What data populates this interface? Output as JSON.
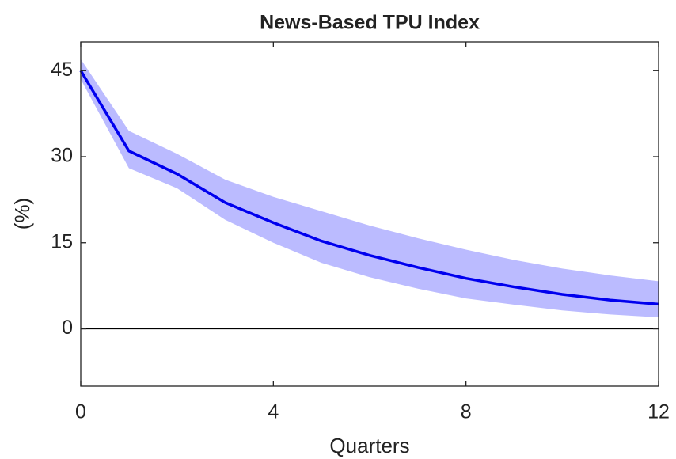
{
  "chart_data": {
    "type": "line",
    "title": "News-Based TPU Index",
    "xlabel": "Quarters",
    "ylabel": "(%)",
    "x": [
      0,
      1,
      2,
      3,
      4,
      5,
      6,
      7,
      8,
      9,
      10,
      11,
      12
    ],
    "values": [
      45,
      31,
      27,
      22,
      18.5,
      15.3,
      12.8,
      10.7,
      8.8,
      7.3,
      6.0,
      5.0,
      4.3
    ],
    "band_upper": [
      47,
      34.5,
      30.5,
      26,
      23,
      20.5,
      18,
      15.8,
      13.8,
      12,
      10.5,
      9.3,
      8.3
    ],
    "band_lower": [
      43.5,
      28,
      24.5,
      19,
      15,
      11.5,
      9,
      7,
      5.3,
      4.2,
      3.2,
      2.5,
      2
    ],
    "color": "#0000ee",
    "band_color": "#bbbbff",
    "hline": 0,
    "xlim": [
      0,
      12
    ],
    "xticks": [
      0,
      4,
      8,
      12
    ],
    "ylim": [
      -10,
      50
    ],
    "yticks": [
      0,
      15,
      30,
      45
    ],
    "grid": false
  }
}
